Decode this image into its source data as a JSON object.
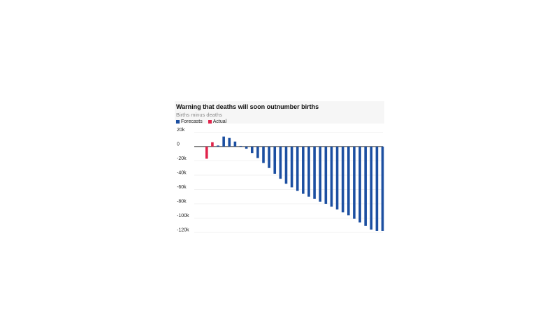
{
  "chart_data": {
    "type": "bar",
    "title": "Warning that deaths will soon outnumber births",
    "subtitle": "Births minus deaths",
    "legend_position": "top-left",
    "grid": true,
    "yticks": [
      20000,
      0,
      -20000,
      -40000,
      -60000,
      -80000,
      -100000,
      -120000
    ],
    "ytick_labels": [
      "20k",
      "0",
      "-20k",
      "-40k",
      "-60k",
      "-80k",
      "-100k",
      "-120k"
    ],
    "ylim": [
      -120000,
      25000
    ],
    "series": [
      {
        "name": "Forecasts",
        "color": "#1c4fa1",
        "values": [
          null,
          null,
          1500,
          14000,
          12000,
          7000,
          1000,
          -3000,
          -9000,
          -16000,
          -23000,
          -30000,
          -38000,
          -45000,
          -52000,
          -57000,
          -62000,
          -66000,
          -70000,
          -73000,
          -77000,
          -80000,
          -84000,
          -88000,
          -92000,
          -96000,
          -101000,
          -106000,
          -111000,
          -116000,
          -118000,
          -118000
        ]
      },
      {
        "name": "Actual",
        "color": "#e0234b",
        "values": [
          -17000,
          6000,
          null,
          null,
          null,
          null,
          null,
          null,
          null,
          null,
          null,
          null,
          null,
          null,
          null,
          null,
          null,
          null,
          null,
          null,
          null,
          null,
          null,
          null,
          null,
          null,
          null,
          null,
          null,
          null,
          null,
          null
        ]
      }
    ]
  }
}
